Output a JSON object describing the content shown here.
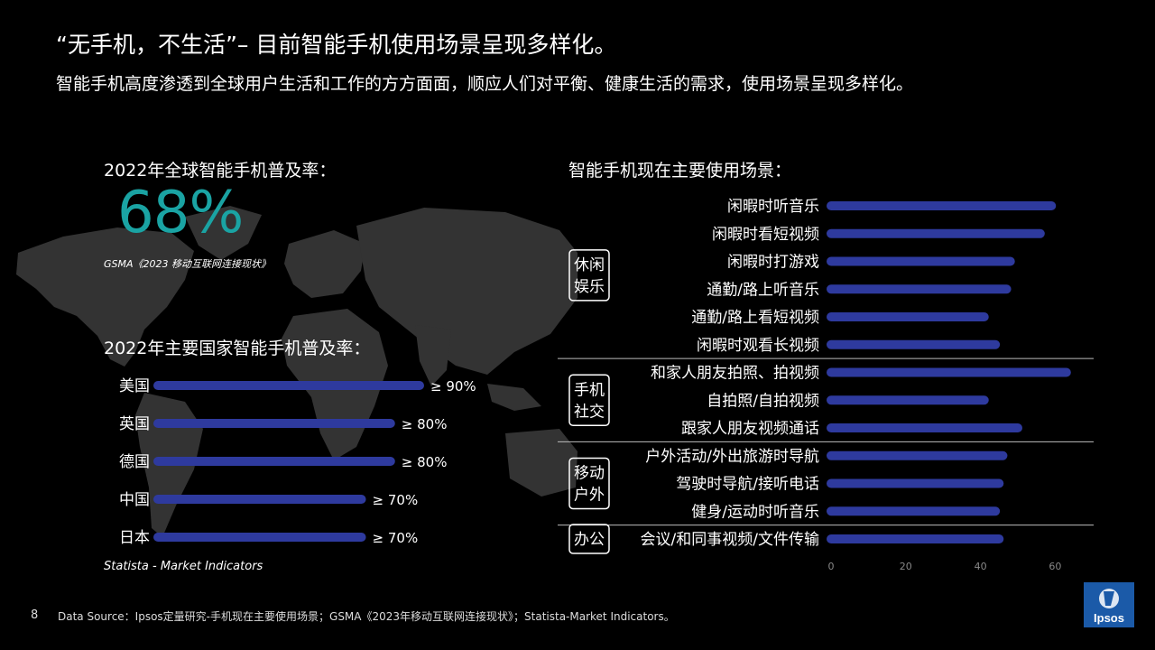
{
  "title": "“无手机，不生活”– 目前智能手机使用场景呈现多样化。",
  "subtitle": "智能手机高度渗透到全球用户生活和工作的方方面面，顺应人们对平衡、健康生活的需求，使用场景呈现多样化。",
  "left_panel": {
    "penetration_heading": "2022年全球智能手机普及率：",
    "big_stat": "68%",
    "gsma_source": "GSMA《2023 移动互联网连接现状》",
    "country_heading": "2022年主要国家智能手机普及率：",
    "statista_source": "Statista - Market  Indicators"
  },
  "usage_panel": {
    "heading": "智能手机现在主要使用场景："
  },
  "footer": {
    "page_number": "8",
    "source": "Data Source：Ipsos定量研究-手机现在主要使用场景；GSMA《2023年移动互联网连接现状》；Statista-Market Indicators。"
  },
  "logo_text": "Ipsos",
  "colors": {
    "background": "#000000",
    "bar": "#2e3a9e",
    "accent_teal": "#1aa3a3",
    "map": "#333333",
    "logo_blue": "#1b5aa8"
  },
  "chart_data": [
    {
      "type": "bar",
      "orientation": "horizontal",
      "categories": [
        "美国",
        "英国",
        "德国",
        "中国",
        "日本"
      ],
      "values": [
        90,
        80,
        80,
        70,
        70
      ],
      "data_labels": [
        "≥ 90%",
        "≥ 80%",
        "≥ 80%",
        "≥ 70%",
        "≥ 70%"
      ],
      "grid": false
    },
    {
      "type": "bar",
      "orientation": "horizontal",
      "categories": [
        "闲暇时听音乐",
        "闲暇时看短视频",
        "闲暇时打游戏",
        "通勤/路上听音乐",
        "通勤/路上看短视频",
        "闲暇时观看长视频",
        "和家人朋友拍照、拍视频",
        "自拍照/自拍视频",
        "跟家人朋友视频通话",
        "户外活动/外出旅游时导航",
        "驾驶时导航/接听电话",
        "健身/运动时听音乐",
        "会议/和同事视频/文件传输"
      ],
      "values": [
        59,
        56,
        48,
        47,
        41,
        44,
        63,
        41,
        50,
        46,
        45,
        44,
        45
      ],
      "groups": [
        {
          "label": "休闲娱乐",
          "count": 6
        },
        {
          "label": "手机社交",
          "count": 3
        },
        {
          "label": "移动户外",
          "count": 3
        },
        {
          "label": "办公",
          "count": 1
        }
      ],
      "x_ticks": [
        0,
        20,
        40,
        60
      ],
      "xlim": [
        0,
        70
      ],
      "grid": false
    }
  ]
}
